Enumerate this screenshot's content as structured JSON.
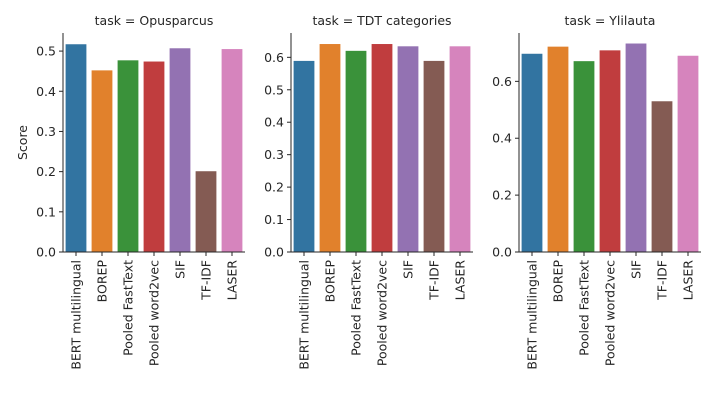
{
  "chart_data": [
    {
      "type": "bar",
      "title": "task = Opusparcus",
      "ylabel": "Score",
      "xlabel": "",
      "ylim": [
        0,
        0.545
      ],
      "yticks": [
        "0.0",
        "0.1",
        "0.2",
        "0.3",
        "0.4",
        "0.5"
      ],
      "categories": [
        "BERT multilingual",
        "BOREP",
        "Pooled FastText",
        "Pooled word2vec",
        "SIF",
        "TF-IDF",
        "LASER"
      ],
      "values": [
        0.517,
        0.452,
        0.477,
        0.474,
        0.507,
        0.201,
        0.505
      ]
    },
    {
      "type": "bar",
      "title": "task = TDT categories",
      "ylabel": "",
      "xlabel": "",
      "ylim": [
        0,
        0.675
      ],
      "yticks": [
        "0.0",
        "0.1",
        "0.2",
        "0.3",
        "0.4",
        "0.5",
        "0.6"
      ],
      "categories": [
        "BERT multilingual",
        "BOREP",
        "Pooled FastText",
        "Pooled word2vec",
        "SIF",
        "TF-IDF",
        "LASER"
      ],
      "values": [
        0.589,
        0.641,
        0.62,
        0.641,
        0.634,
        0.589,
        0.634
      ]
    },
    {
      "type": "bar",
      "title": "task = Ylilauta",
      "ylabel": "",
      "xlabel": "",
      "ylim": [
        0,
        0.77
      ],
      "yticks": [
        "0.0",
        "0.2",
        "0.4",
        "0.6"
      ],
      "categories": [
        "BERT multilingual",
        "BOREP",
        "Pooled FastText",
        "Pooled word2vec",
        "SIF",
        "TF-IDF",
        "LASER"
      ],
      "values": [
        0.697,
        0.722,
        0.671,
        0.709,
        0.733,
        0.53,
        0.69
      ]
    }
  ],
  "colors": [
    "#3274a1",
    "#e1812c",
    "#3a923a",
    "#c03d3e",
    "#9372b2",
    "#845b53",
    "#d684bd"
  ]
}
